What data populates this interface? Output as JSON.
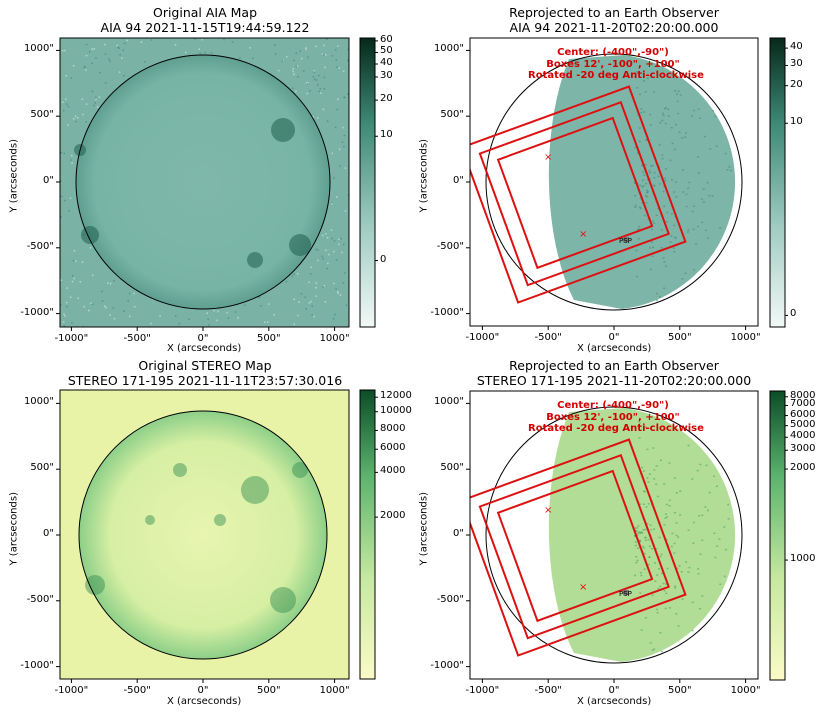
{
  "chart_data": [
    {
      "type": "image",
      "title_line1": "Original AIA Map",
      "title_line2": "AIA 94 2021-11-15T19:44:59.122",
      "xlabel": "X (arcseconds)",
      "ylabel": "Y (arcseconds)",
      "xlim": [
        -1100,
        1100
      ],
      "ylim": [
        -1100,
        1100
      ],
      "xticks": [
        "-1000\"",
        "-500\"",
        "0\"",
        "500\"",
        "1000\""
      ],
      "yticks": [
        "1000\"",
        "500\"",
        "0\"",
        "-500\"",
        "-1000\""
      ],
      "colormap": "teal",
      "colorbar_ticks": [
        "60",
        "50",
        "40",
        "30",
        "20",
        "10",
        "0"
      ],
      "limb_radius_arcsec": 970
    },
    {
      "type": "image",
      "title_line1": "Reprojected to an Earth Observer",
      "title_line2": "AIA 94 2021-11-20T02:20:00.000",
      "xlabel": "X (arcseconds)",
      "ylabel": "Y (arcseconds)",
      "xlim": [
        -1100,
        1100
      ],
      "ylim": [
        -1100,
        1100
      ],
      "xticks": [
        "-1000\"",
        "-500\"",
        "0\"",
        "500\"",
        "1000\""
      ],
      "yticks": [
        "1000\"",
        "500\"",
        "0\"",
        "-500\"",
        "-1000\""
      ],
      "colormap": "teal",
      "colorbar_ticks": [
        "40",
        "30",
        "20",
        "10",
        "0"
      ],
      "annotation": [
        "Center: (-400\",-90\")",
        "Boxes 12', -100\", +100\"",
        "Rotated -20 deg Anti-clockwise"
      ],
      "marker_label": "PSP"
    },
    {
      "type": "image",
      "title_line1": "Original STEREO Map",
      "title_line2": "STEREO 171-195 2021-11-11T23:57:30.016",
      "xlabel": "X (arcseconds)",
      "ylabel": "Y (arcseconds)",
      "xlim": [
        -1230,
        1120
      ],
      "ylim": [
        -1100,
        1200
      ],
      "xticks": [
        "-1000\"",
        "-500\"",
        "0\"",
        "500\"",
        "1000\""
      ],
      "yticks": [
        "1000\"",
        "500\"",
        "0\"",
        "-500\"",
        "-1000\""
      ],
      "colormap": "yellow-green",
      "colorbar_ticks": [
        "12000",
        "10000",
        "8000",
        "6000",
        "4000",
        "2000"
      ]
    },
    {
      "type": "image",
      "title_line1": "Reprojected to an Earth Observer",
      "title_line2": "STEREO 171-195 2021-11-20T02:20:00.000",
      "xlabel": "X (arcseconds)",
      "ylabel": "Y (arcseconds)",
      "xlim": [
        -1100,
        1100
      ],
      "ylim": [
        -1100,
        1100
      ],
      "xticks": [
        "-1000\"",
        "-500\"",
        "0\"",
        "500\"",
        "1000\""
      ],
      "yticks": [
        "1000\"",
        "500\"",
        "0\"",
        "-500\"",
        "-1000\""
      ],
      "colormap": "yellow-green",
      "colorbar_ticks": [
        "8000",
        "7000",
        "6000",
        "5000",
        "4000",
        "3000",
        "2000",
        "1000"
      ],
      "annotation": [
        "Center: (-400\",-90\")",
        "Boxes 12', -100\", +100\"",
        "Rotated -20 deg Anti-clockwise"
      ],
      "marker_label": "PSP"
    }
  ],
  "colors": {
    "teal_dark": "#0d3b2a",
    "teal_mid": "#5fa596",
    "teal_light": "#e4f1ee",
    "yg_light": "#fbfbc7",
    "yg_mid": "#8fd08a",
    "yg_dark": "#0f5a2e",
    "box_red": "#dd1111",
    "annotation_red": "#d40000"
  }
}
